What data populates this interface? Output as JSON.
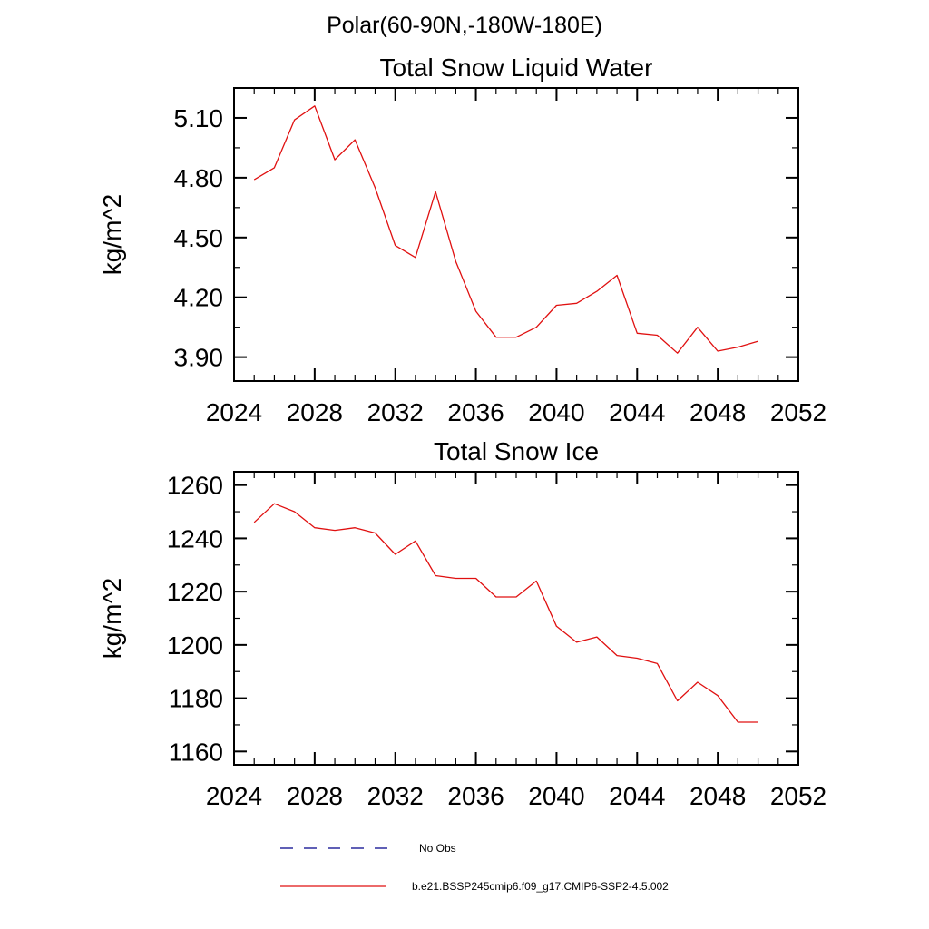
{
  "page": {
    "title": "Polar(60-90N,-180W-180E)"
  },
  "chart_data": [
    {
      "type": "line",
      "title": "Total Snow Liquid Water",
      "xlabel": "",
      "ylabel": "kg/m^2",
      "xlim": [
        2024,
        2052
      ],
      "ylim": [
        3.78,
        5.25
      ],
      "xticks": [
        2024,
        2028,
        2032,
        2036,
        2040,
        2044,
        2048,
        2052
      ],
      "xminor_step": 1,
      "yticks": [
        3.9,
        4.2,
        4.5,
        4.8,
        5.1
      ],
      "ytick_labels": [
        "3.90",
        "4.20",
        "4.50",
        "4.80",
        "5.10"
      ],
      "yminor_step": 0.15,
      "grid": false,
      "x": [
        2025,
        2026,
        2027,
        2028,
        2029,
        2030,
        2031,
        2032,
        2033,
        2034,
        2035,
        2036,
        2037,
        2038,
        2039,
        2040,
        2041,
        2042,
        2043,
        2044,
        2045,
        2046,
        2047,
        2048,
        2049,
        2050
      ],
      "series": [
        {
          "name": "b.e21.BSSP245cmip6.f09_g17.CMIP6-SSP2-4.5.002",
          "color": "#e01010",
          "values": [
            4.79,
            4.85,
            5.09,
            5.16,
            4.89,
            4.99,
            4.75,
            4.46,
            4.4,
            4.73,
            4.38,
            4.13,
            4.0,
            4.0,
            4.05,
            4.16,
            4.17,
            4.23,
            4.31,
            4.02,
            4.01,
            3.92,
            4.05,
            3.93,
            3.95,
            3.98
          ]
        }
      ]
    },
    {
      "type": "line",
      "title": "Total Snow Ice",
      "xlabel": "",
      "ylabel": "kg/m^2",
      "xlim": [
        2024,
        2052
      ],
      "ylim": [
        1155,
        1265
      ],
      "xticks": [
        2024,
        2028,
        2032,
        2036,
        2040,
        2044,
        2048,
        2052
      ],
      "xminor_step": 1,
      "yticks": [
        1160,
        1180,
        1200,
        1220,
        1240,
        1260
      ],
      "ytick_labels": [
        "1160",
        "1180",
        "1200",
        "1220",
        "1240",
        "1260"
      ],
      "yminor_step": 10,
      "grid": false,
      "x": [
        2025,
        2026,
        2027,
        2028,
        2029,
        2030,
        2031,
        2032,
        2033,
        2034,
        2035,
        2036,
        2037,
        2038,
        2039,
        2040,
        2041,
        2042,
        2043,
        2044,
        2045,
        2046,
        2047,
        2048,
        2049,
        2050
      ],
      "series": [
        {
          "name": "b.e21.BSSP245cmip6.f09_g17.CMIP6-SSP2-4.5.002",
          "color": "#e01010",
          "values": [
            1246,
            1253,
            1250,
            1244,
            1243,
            1244,
            1242,
            1234,
            1239,
            1226,
            1225,
            1225,
            1218,
            1218,
            1224,
            1207,
            1201,
            1203,
            1196,
            1195,
            1193,
            1179,
            1186,
            1181,
            1171,
            1171
          ]
        }
      ]
    }
  ],
  "legend": {
    "items": [
      {
        "label": "No Obs",
        "color": "#00008b",
        "dash": "14,12"
      },
      {
        "label": "b.e21.BSSP245cmip6.f09_g17.CMIP6-SSP2-4.5.002",
        "color": "#e01010",
        "dash": ""
      }
    ]
  }
}
